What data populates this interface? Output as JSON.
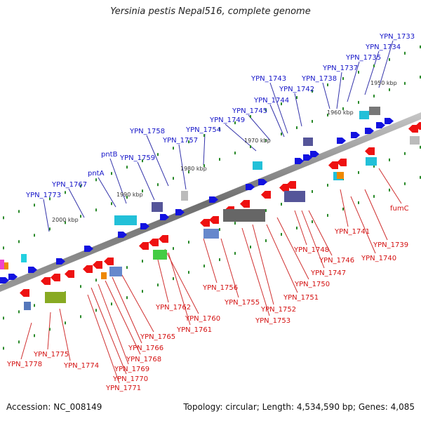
{
  "title": "Yersinia pestis Nepal516, complete genome",
  "footer": {
    "accession": "Accession: NC_008149",
    "summary": "Topology: circular; Length: 4,534,590 bp; Genes: 4,085"
  },
  "scale_ticks": [
    "1950 kbp",
    "1960 kbp",
    "1970 kbp",
    "1980 kbp",
    "1990 kbp",
    "2000 kbp"
  ],
  "top_labels": [
    "YPN_1733",
    "YPN_1734",
    "YPN_1735",
    "YPN_1737",
    "YPN_1738",
    "YPN_1742",
    "YPN_1743",
    "YPN_1744",
    "YPN_1745",
    "YPN_1749",
    "YPN_1754",
    "YPN_1757",
    "YPN_1758",
    "YPN_1759",
    "pntB",
    "pntA",
    "YPN_1767",
    "YPN_1773"
  ],
  "bottom_labels": [
    "fumC",
    "YPN_1739",
    "YPN_1740",
    "YPN_1741",
    "YPN_1746",
    "YPN_1747",
    "YPN_1748",
    "YPN_1750",
    "YPN_1751",
    "YPN_1752",
    "YPN_1753",
    "YPN_1755",
    "YPN_1756",
    "YPN_1760",
    "YPN_1761",
    "YPN_1762",
    "YPN_1765",
    "YPN_1766",
    "YPN_1768",
    "YPN_1769",
    "YPN_1770",
    "YPN_1771",
    "YPN_1774",
    "YPN_1775",
    "YPN_1778"
  ],
  "colors": {
    "forward_label": "#1414c8",
    "reverse_label": "#d41010",
    "forward_gene": "#1212e0",
    "reverse_gene": "#ee1111",
    "backbone": "#777777",
    "tick_mark": "#2a8a2a"
  }
}
